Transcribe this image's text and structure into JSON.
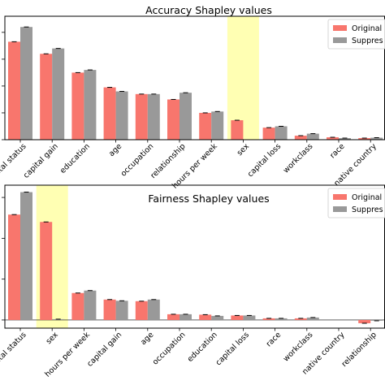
{
  "colors": {
    "original": "#f8766d",
    "suppressed": "#999999",
    "highlight": "#ffffb3",
    "axis": "#000000",
    "errorbar": "#000000"
  },
  "chart_data": [
    {
      "type": "bar",
      "title": "Accuracy Shapley values",
      "categories": [
        "marital status",
        "capital gain",
        "education",
        "age",
        "occupation",
        "relationship",
        "hours per week",
        "sex",
        "capital loss",
        "workclass",
        "race",
        "native country"
      ],
      "series": [
        {
          "name": "Original",
          "values": [
            0.73,
            0.64,
            0.5,
            0.39,
            0.34,
            0.3,
            0.2,
            0.145,
            0.09,
            0.03,
            0.018,
            0.012
          ]
        },
        {
          "name": "Suppressed",
          "values": [
            0.84,
            0.68,
            0.52,
            0.36,
            0.34,
            0.35,
            0.21,
            0.0,
            0.1,
            0.045,
            0.012,
            0.015
          ]
        }
      ],
      "highlight_category": "sex",
      "ylim": [
        0,
        0.92
      ],
      "legend": "top-right",
      "legend_labels": [
        "Original",
        "Suppres"
      ],
      "xlabel": "",
      "ylabel": ""
    },
    {
      "type": "bar",
      "title": "Fairness Shapley values",
      "categories": [
        "marital status",
        "sex",
        "hours per week",
        "capital gain",
        "age",
        "occupation",
        "education",
        "capital loss",
        "race",
        "workclass",
        "native country",
        "relationship"
      ],
      "series": [
        {
          "name": "Original",
          "values": [
            0.258,
            0.24,
            0.066,
            0.05,
            0.046,
            0.014,
            0.013,
            0.011,
            0.004,
            0.004,
            0.0,
            -0.008
          ]
        },
        {
          "name": "Suppressed",
          "values": [
            0.313,
            0.002,
            0.072,
            0.047,
            0.05,
            0.014,
            0.01,
            0.011,
            0.004,
            0.006,
            0.0,
            -0.002
          ]
        }
      ],
      "highlight_category": "sex",
      "ylim": [
        -0.02,
        0.33
      ],
      "legend": "top-right",
      "legend_labels": [
        "Original",
        "Suppres"
      ],
      "xlabel": "",
      "ylabel": ""
    }
  ]
}
